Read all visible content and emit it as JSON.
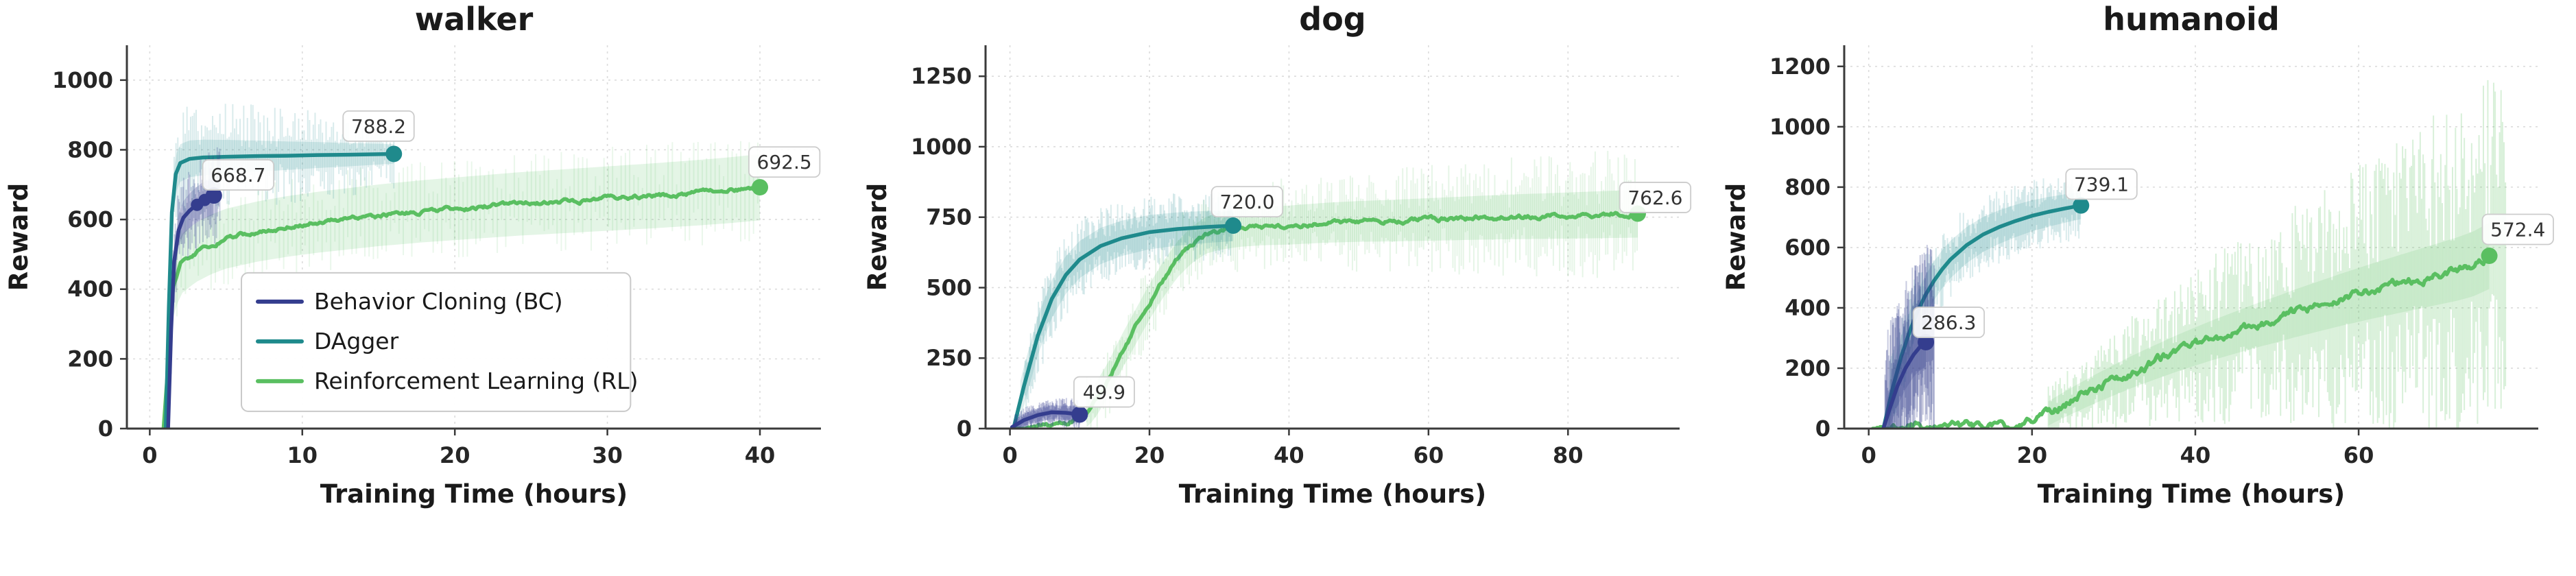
{
  "page": {
    "background": "#ffffff"
  },
  "colors": {
    "bc": "#343d8e",
    "dagger": "#1f8a8c",
    "rl": "#5abf61"
  },
  "text_colors": {
    "title": "#1a1a1a",
    "tick": "#262626",
    "axis_label": "#1a1a1a",
    "annotation": "#333333"
  },
  "legend": {
    "chart_index": 0,
    "items": [
      {
        "series": "bc",
        "label": "Behavior Cloning (BC)"
      },
      {
        "series": "dagger",
        "label": "DAgger"
      },
      {
        "series": "rl",
        "label": "Reinforcement Learning (RL)"
      }
    ]
  },
  "chart_data": [
    {
      "type": "line",
      "title": "walker",
      "xlabel": "Training Time (hours)",
      "ylabel": "Reward",
      "xlim": [
        -1.5,
        44
      ],
      "ylim": [
        0,
        1100
      ],
      "xticks": [
        0,
        10,
        20,
        30,
        40
      ],
      "yticks": [
        0,
        200,
        400,
        600,
        800,
        1000
      ],
      "grid": true,
      "series": [
        {
          "id": "rl",
          "seed": 7,
          "jitter": 8,
          "points": [
            [
              0.9,
              0
            ],
            [
              1.2,
              180
            ],
            [
              1.5,
              400
            ],
            [
              2,
              470
            ],
            [
              3,
              505
            ],
            [
              4,
              528
            ],
            [
              5,
              545
            ],
            [
              7,
              565
            ],
            [
              9,
              580
            ],
            [
              11,
              592
            ],
            [
              13,
              602
            ],
            [
              15,
              612
            ],
            [
              18,
              624
            ],
            [
              21,
              634
            ],
            [
              24,
              644
            ],
            [
              27,
              652
            ],
            [
              30,
              660
            ],
            [
              33,
              668
            ],
            [
              36,
              677
            ],
            [
              38,
              684
            ],
            [
              40,
              692.5
            ]
          ],
          "band": {
            "x0": 1.5,
            "hw0": 85,
            "hw1": 95,
            "alpha": 0.16
          },
          "spikes": {
            "x0": 1.5,
            "x1": 40,
            "amp0": 140,
            "amp1": 155,
            "step": 0.28,
            "alpha": 0.13
          },
          "end": [
            40,
            692.5
          ]
        },
        {
          "id": "dagger",
          "seed": 5,
          "jitter": 0,
          "points": [
            [
              1.05,
              0
            ],
            [
              1.25,
              350
            ],
            [
              1.45,
              620
            ],
            [
              1.7,
              730
            ],
            [
              2.0,
              762
            ],
            [
              2.6,
              774
            ],
            [
              3.5,
              778
            ],
            [
              5,
              780
            ],
            [
              7,
              782
            ],
            [
              9,
              783
            ],
            [
              11,
              785
            ],
            [
              13,
              786
            ],
            [
              16,
              788.2
            ]
          ],
          "band": {
            "x0": 1.4,
            "hw0": 55,
            "hw1": 28,
            "alpha": 0.15
          },
          "spikes": {
            "x0": 1.6,
            "x1": 16,
            "amp0": 170,
            "amp1": 110,
            "step": 0.12,
            "alpha": 0.17
          },
          "end": [
            16,
            788.2
          ]
        },
        {
          "id": "bc",
          "seed": 3,
          "jitter": 0,
          "points": [
            [
              1.2,
              0
            ],
            [
              1.4,
              280
            ],
            [
              1.6,
              480
            ],
            [
              1.9,
              570
            ],
            [
              2.2,
              605
            ],
            [
              2.6,
              625
            ],
            [
              3.0,
              640
            ],
            [
              3.4,
              652
            ],
            [
              3.8,
              660
            ],
            [
              4.2,
              668.7
            ]
          ],
          "markers": [
            [
              3.1,
              642
            ],
            [
              3.6,
              656
            ]
          ],
          "band": {
            "x0": 1.5,
            "hw0": 45,
            "hw1": 55,
            "alpha": 0.2
          },
          "spikes": {
            "x0": 1.4,
            "x1": 4.6,
            "amp0": 130,
            "amp1": 140,
            "step": 0.055,
            "alpha": 0.24
          },
          "end": [
            4.2,
            668.7
          ]
        }
      ],
      "annotations": [
        {
          "text": "668.7",
          "x": 5.8,
          "y": 728
        },
        {
          "text": "788.2",
          "x": 15.0,
          "y": 868
        },
        {
          "text": "692.5",
          "x": 41.6,
          "y": 765
        }
      ]
    },
    {
      "type": "line",
      "title": "dog",
      "xlabel": "Training Time (hours)",
      "ylabel": "Reward",
      "xlim": [
        -3.5,
        96
      ],
      "ylim": [
        0,
        1360
      ],
      "xticks": [
        0,
        20,
        40,
        60,
        80
      ],
      "yticks": [
        0,
        250,
        500,
        750,
        1000,
        1250
      ],
      "grid": true,
      "series": [
        {
          "id": "rl",
          "seed": 17,
          "jitter": 11,
          "points": [
            [
              0.5,
              0
            ],
            [
              6,
              8
            ],
            [
              8,
              15
            ],
            [
              10,
              40
            ],
            [
              12,
              90
            ],
            [
              14,
              170
            ],
            [
              16,
              270
            ],
            [
              18,
              360
            ],
            [
              20,
              450
            ],
            [
              22,
              530
            ],
            [
              24,
              600
            ],
            [
              26,
              650
            ],
            [
              28,
              685
            ],
            [
              30,
              700
            ],
            [
              33,
              712
            ],
            [
              36,
              718
            ],
            [
              40,
              722
            ],
            [
              45,
              730
            ],
            [
              50,
              735
            ],
            [
              55,
              738
            ],
            [
              60,
              742
            ],
            [
              65,
              746
            ],
            [
              70,
              750
            ],
            [
              75,
              753
            ],
            [
              80,
              756
            ],
            [
              85,
              759
            ],
            [
              90,
              762.6
            ]
          ],
          "band": {
            "x0": 11,
            "hw0": 60,
            "hw1": 85,
            "alpha": 0.16
          },
          "spikes": {
            "x0": 11,
            "x1": 90,
            "amp0": 130,
            "amp1": 235,
            "step": 0.3,
            "alpha": 0.15
          },
          "end": [
            90,
            762.6
          ]
        },
        {
          "id": "dagger",
          "seed": 13,
          "jitter": 0,
          "points": [
            [
              0.5,
              0
            ],
            [
              2,
              150
            ],
            [
              4,
              330
            ],
            [
              6,
              460
            ],
            [
              8,
              545
            ],
            [
              10,
              600
            ],
            [
              13,
              648
            ],
            [
              16,
              675
            ],
            [
              20,
              697
            ],
            [
              24,
              708
            ],
            [
              28,
              715
            ],
            [
              32,
              720
            ]
          ],
          "band": {
            "x0": 1.5,
            "hw0": 70,
            "hw1": 55,
            "alpha": 0.15
          },
          "spikes": {
            "x0": 2,
            "x1": 32,
            "amp0": 150,
            "amp1": 120,
            "step": 0.16,
            "alpha": 0.17
          },
          "end": [
            32,
            720.0
          ]
        },
        {
          "id": "bc",
          "seed": 9,
          "jitter": 0,
          "points": [
            [
              0.3,
              5
            ],
            [
              2,
              30
            ],
            [
              4,
              48
            ],
            [
              6,
              58
            ],
            [
              8,
              56
            ],
            [
              10,
              49.9
            ]
          ],
          "band": {
            "x0": 0.5,
            "hw0": 22,
            "hw1": 26,
            "alpha": 0.22
          },
          "spikes": {
            "x0": 0.6,
            "x1": 10,
            "amp0": 45,
            "amp1": 55,
            "step": 0.07,
            "alpha": 0.25
          },
          "end": [
            10,
            49.9
          ]
        }
      ],
      "annotations": [
        {
          "text": "49.9",
          "x": 13.5,
          "y": 130
        },
        {
          "text": "720.0",
          "x": 34.0,
          "y": 805
        },
        {
          "text": "762.6",
          "x": 92.5,
          "y": 820
        }
      ]
    },
    {
      "type": "line",
      "title": "humanoid",
      "xlabel": "Training Time (hours)",
      "ylabel": "Reward",
      "xlim": [
        -3,
        82
      ],
      "ylim": [
        0,
        1270
      ],
      "xticks": [
        0,
        20,
        40,
        60
      ],
      "yticks": [
        0,
        200,
        400,
        600,
        800,
        1000,
        1200
      ],
      "grid": true,
      "series": [
        {
          "id": "rl",
          "seed": 29,
          "jitter": 20,
          "points": [
            [
              0.5,
              0
            ],
            [
              10,
              3
            ],
            [
              16,
              6
            ],
            [
              18,
              12
            ],
            [
              20,
              25
            ],
            [
              22,
              50
            ],
            [
              24,
              80
            ],
            [
              26,
              108
            ],
            [
              28,
              135
            ],
            [
              30,
              160
            ],
            [
              32,
              185
            ],
            [
              34,
              208
            ],
            [
              36,
              230
            ],
            [
              38,
              252
            ],
            [
              40,
              272
            ],
            [
              42,
              292
            ],
            [
              44,
              310
            ],
            [
              46,
              328
            ],
            [
              48,
              346
            ],
            [
              50,
              362
            ],
            [
              52,
              380
            ],
            [
              54,
              396
            ],
            [
              56,
              412
            ],
            [
              58,
              428
            ],
            [
              60,
              443
            ],
            [
              62,
              458
            ],
            [
              64,
              472
            ],
            [
              66,
              486
            ],
            [
              68,
              500
            ],
            [
              70,
              514
            ],
            [
              72,
              528
            ],
            [
              74,
              545
            ],
            [
              76,
              572.4
            ]
          ],
          "band": {
            "x0": 22,
            "hw0": 40,
            "hw1": 110,
            "alpha": 0.14
          },
          "spikes": {
            "x0": 22,
            "x1": 78,
            "amp0": 90,
            "amp1": 620,
            "step": 0.18,
            "alpha": 0.24
          },
          "end": [
            76,
            572.4
          ]
        },
        {
          "id": "dagger",
          "seed": 23,
          "jitter": 0,
          "points": [
            [
              1.8,
              0
            ],
            [
              3,
              140
            ],
            [
              4,
              240
            ],
            [
              5,
              320
            ],
            [
              6,
              390
            ],
            [
              7,
              445
            ],
            [
              8,
              490
            ],
            [
              9,
              528
            ],
            [
              10,
              560
            ],
            [
              12,
              608
            ],
            [
              14,
              643
            ],
            [
              16,
              668
            ],
            [
              18,
              688
            ],
            [
              20,
              705
            ],
            [
              22,
              718
            ],
            [
              24,
              729
            ],
            [
              26,
              739.1
            ]
          ],
          "band": {
            "x0": 2.5,
            "hw0": 70,
            "hw1": 45,
            "alpha": 0.15
          },
          "spikes": {
            "x0": 2.5,
            "x1": 26,
            "amp0": 140,
            "amp1": 110,
            "step": 0.14,
            "alpha": 0.17
          },
          "end": [
            26,
            739.1
          ]
        },
        {
          "id": "bc",
          "seed": 19,
          "jitter": 0,
          "points": [
            [
              1.8,
              0
            ],
            [
              2.5,
              60
            ],
            [
              3.5,
              140
            ],
            [
              4.5,
              200
            ],
            [
              5.5,
              245
            ],
            [
              6.2,
              268
            ],
            [
              7,
              286.3
            ]
          ],
          "band": {
            "x0": 2.2,
            "hw0": 60,
            "hw1": 80,
            "alpha": 0.2
          },
          "spikes": {
            "x0": 2.0,
            "x1": 8,
            "amp0": 280,
            "amp1": 330,
            "step": 0.05,
            "alpha": 0.27
          },
          "end": [
            7,
            286.3
          ]
        }
      ],
      "annotations": [
        {
          "text": "286.3",
          "x": 9.8,
          "y": 352
        },
        {
          "text": "739.1",
          "x": 28.5,
          "y": 810
        },
        {
          "text": "572.4",
          "x": 79.5,
          "y": 660
        }
      ]
    }
  ]
}
